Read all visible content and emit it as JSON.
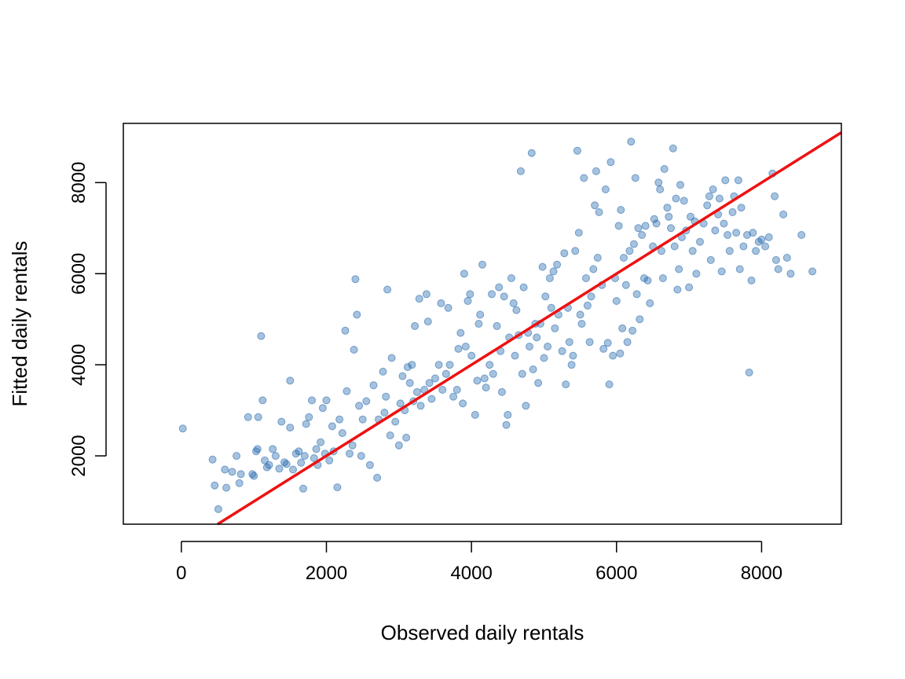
{
  "chart_data": {
    "type": "scatter",
    "xlabel": "Observed daily rentals",
    "ylabel": "Fitted daily rentals",
    "xlim": [
      -800,
      9100
    ],
    "ylim": [
      500,
      9300
    ],
    "x_ticks": [
      0,
      2000,
      4000,
      6000,
      8000
    ],
    "y_ticks": [
      2000,
      4000,
      6000,
      8000
    ],
    "x_tick_labels": [
      "0",
      "2000",
      "4000",
      "6000",
      "8000"
    ],
    "y_tick_labels": [
      "2000",
      "4000",
      "6000",
      "8000"
    ],
    "grid": false,
    "point_color": "#2166ac",
    "line_color": "#ee1111",
    "reference_line": {
      "label": "y = x",
      "intercept": 0,
      "slope": 1
    },
    "series": [
      {
        "points": [
          [
            20,
            2600
          ],
          [
            430,
            1920
          ],
          [
            460,
            1350
          ],
          [
            510,
            830
          ],
          [
            600,
            1700
          ],
          [
            620,
            1300
          ],
          [
            700,
            1650
          ],
          [
            760,
            2000
          ],
          [
            800,
            1400
          ],
          [
            820,
            1600
          ],
          [
            920,
            2850
          ],
          [
            980,
            1600
          ],
          [
            1000,
            1560
          ],
          [
            1030,
            2100
          ],
          [
            1050,
            2150
          ],
          [
            1060,
            2850
          ],
          [
            1100,
            4630
          ],
          [
            1120,
            3220
          ],
          [
            1150,
            1900
          ],
          [
            1180,
            1750
          ],
          [
            1210,
            1800
          ],
          [
            1260,
            2150
          ],
          [
            1300,
            2000
          ],
          [
            1350,
            1720
          ],
          [
            1380,
            2750
          ],
          [
            1420,
            1860
          ],
          [
            1450,
            1820
          ],
          [
            1500,
            3650
          ],
          [
            1500,
            2620
          ],
          [
            1540,
            1700
          ],
          [
            1580,
            2050
          ],
          [
            1620,
            2100
          ],
          [
            1650,
            1850
          ],
          [
            1680,
            1280
          ],
          [
            1700,
            2000
          ],
          [
            1720,
            2700
          ],
          [
            1760,
            2850
          ],
          [
            1800,
            3220
          ],
          [
            1830,
            1950
          ],
          [
            1860,
            2150
          ],
          [
            1880,
            1800
          ],
          [
            1920,
            2300
          ],
          [
            1950,
            3050
          ],
          [
            1980,
            2050
          ],
          [
            2000,
            3220
          ],
          [
            2040,
            1900
          ],
          [
            2080,
            2650
          ],
          [
            2100,
            2100
          ],
          [
            2150,
            1310
          ],
          [
            2180,
            2800
          ],
          [
            2220,
            2500
          ],
          [
            2260,
            4750
          ],
          [
            2280,
            3420
          ],
          [
            2320,
            2050
          ],
          [
            2360,
            2230
          ],
          [
            2380,
            4330
          ],
          [
            2400,
            5880
          ],
          [
            2420,
            5100
          ],
          [
            2450,
            3100
          ],
          [
            2480,
            2000
          ],
          [
            2500,
            2800
          ],
          [
            2550,
            3200
          ],
          [
            2600,
            1800
          ],
          [
            2650,
            3550
          ],
          [
            2700,
            1520
          ],
          [
            2720,
            2800
          ],
          [
            2780,
            3850
          ],
          [
            2800,
            2950
          ],
          [
            2820,
            3300
          ],
          [
            2840,
            5650
          ],
          [
            2880,
            2450
          ],
          [
            2900,
            4150
          ],
          [
            2950,
            2750
          ],
          [
            3000,
            2230
          ],
          [
            3020,
            3150
          ],
          [
            3050,
            3750
          ],
          [
            3080,
            3000
          ],
          [
            3100,
            2400
          ],
          [
            3120,
            3950
          ],
          [
            3150,
            3600
          ],
          [
            3180,
            4000
          ],
          [
            3200,
            3200
          ],
          [
            3220,
            4850
          ],
          [
            3250,
            3400
          ],
          [
            3280,
            5450
          ],
          [
            3300,
            3100
          ],
          [
            3350,
            3450
          ],
          [
            3380,
            5550
          ],
          [
            3400,
            4950
          ],
          [
            3420,
            3600
          ],
          [
            3450,
            3250
          ],
          [
            3500,
            3700
          ],
          [
            3550,
            4000
          ],
          [
            3580,
            5350
          ],
          [
            3600,
            3450
          ],
          [
            3650,
            3800
          ],
          [
            3680,
            5250
          ],
          [
            3700,
            4000
          ],
          [
            3750,
            3300
          ],
          [
            3800,
            3450
          ],
          [
            3820,
            4350
          ],
          [
            3850,
            4700
          ],
          [
            3880,
            3150
          ],
          [
            3900,
            6000
          ],
          [
            3920,
            4400
          ],
          [
            3950,
            5400
          ],
          [
            3980,
            5550
          ],
          [
            4000,
            4200
          ],
          [
            4050,
            2900
          ],
          [
            4080,
            3650
          ],
          [
            4100,
            4900
          ],
          [
            4120,
            5100
          ],
          [
            4150,
            6200
          ],
          [
            4180,
            3700
          ],
          [
            4200,
            3500
          ],
          [
            4250,
            4000
          ],
          [
            4280,
            5550
          ],
          [
            4300,
            3800
          ],
          [
            4350,
            4850
          ],
          [
            4380,
            5700
          ],
          [
            4400,
            4300
          ],
          [
            4420,
            3400
          ],
          [
            4450,
            5500
          ],
          [
            4480,
            2680
          ],
          [
            4500,
            2900
          ],
          [
            4520,
            4600
          ],
          [
            4550,
            5900
          ],
          [
            4580,
            5350
          ],
          [
            4600,
            4200
          ],
          [
            4620,
            5200
          ],
          [
            4650,
            4650
          ],
          [
            4680,
            8250
          ],
          [
            4700,
            3800
          ],
          [
            4720,
            5700
          ],
          [
            4750,
            3100
          ],
          [
            4780,
            4700
          ],
          [
            4800,
            4400
          ],
          [
            4830,
            8650
          ],
          [
            4850,
            3900
          ],
          [
            4880,
            4900
          ],
          [
            4900,
            4600
          ],
          [
            4920,
            3600
          ],
          [
            4950,
            4900
          ],
          [
            4980,
            6150
          ],
          [
            5000,
            4150
          ],
          [
            5020,
            5500
          ],
          [
            5050,
            4400
          ],
          [
            5080,
            5900
          ],
          [
            5100,
            5250
          ],
          [
            5130,
            6050
          ],
          [
            5150,
            4800
          ],
          [
            5180,
            6200
          ],
          [
            5200,
            5100
          ],
          [
            5250,
            4300
          ],
          [
            5280,
            6450
          ],
          [
            5300,
            3570
          ],
          [
            5330,
            5250
          ],
          [
            5350,
            4500
          ],
          [
            5380,
            4000
          ],
          [
            5400,
            4200
          ],
          [
            5430,
            6500
          ],
          [
            5460,
            8700
          ],
          [
            5480,
            6900
          ],
          [
            5500,
            5100
          ],
          [
            5520,
            4900
          ],
          [
            5550,
            8100
          ],
          [
            5580,
            5900
          ],
          [
            5600,
            5300
          ],
          [
            5630,
            4500
          ],
          [
            5650,
            5500
          ],
          [
            5680,
            6100
          ],
          [
            5700,
            7500
          ],
          [
            5720,
            8250
          ],
          [
            5740,
            6350
          ],
          [
            5760,
            7350
          ],
          [
            5800,
            5750
          ],
          [
            5820,
            4350
          ],
          [
            5850,
            7850
          ],
          [
            5880,
            4480
          ],
          [
            5900,
            3570
          ],
          [
            5920,
            8450
          ],
          [
            5950,
            4200
          ],
          [
            5980,
            5900
          ],
          [
            6000,
            5400
          ],
          [
            6030,
            7050
          ],
          [
            6050,
            4250
          ],
          [
            6060,
            7400
          ],
          [
            6080,
            4800
          ],
          [
            6100,
            6350
          ],
          [
            6130,
            5750
          ],
          [
            6150,
            4500
          ],
          [
            6180,
            6500
          ],
          [
            6200,
            8900
          ],
          [
            6220,
            4750
          ],
          [
            6240,
            6650
          ],
          [
            6260,
            8100
          ],
          [
            6280,
            5550
          ],
          [
            6300,
            7000
          ],
          [
            6320,
            5000
          ],
          [
            6350,
            6850
          ],
          [
            6380,
            5900
          ],
          [
            6400,
            7050
          ],
          [
            6430,
            5850
          ],
          [
            6460,
            5350
          ],
          [
            6500,
            6600
          ],
          [
            6520,
            7200
          ],
          [
            6550,
            7100
          ],
          [
            6580,
            8000
          ],
          [
            6600,
            7850
          ],
          [
            6620,
            6500
          ],
          [
            6640,
            5900
          ],
          [
            6660,
            8300
          ],
          [
            6700,
            7450
          ],
          [
            6720,
            7250
          ],
          [
            6750,
            7000
          ],
          [
            6780,
            8750
          ],
          [
            6800,
            6600
          ],
          [
            6820,
            7650
          ],
          [
            6840,
            5650
          ],
          [
            6860,
            6100
          ],
          [
            6880,
            7950
          ],
          [
            6900,
            6800
          ],
          [
            6930,
            7600
          ],
          [
            6960,
            6950
          ],
          [
            7000,
            5700
          ],
          [
            7020,
            7250
          ],
          [
            7050,
            6500
          ],
          [
            7080,
            7150
          ],
          [
            7100,
            6000
          ],
          [
            7150,
            6700
          ],
          [
            7200,
            7100
          ],
          [
            7250,
            7500
          ],
          [
            7280,
            7700
          ],
          [
            7300,
            6300
          ],
          [
            7330,
            7850
          ],
          [
            7360,
            6950
          ],
          [
            7400,
            7300
          ],
          [
            7420,
            7650
          ],
          [
            7450,
            6050
          ],
          [
            7480,
            7100
          ],
          [
            7500,
            8050
          ],
          [
            7530,
            6850
          ],
          [
            7560,
            6500
          ],
          [
            7600,
            7350
          ],
          [
            7620,
            7700
          ],
          [
            7650,
            6900
          ],
          [
            7680,
            8050
          ],
          [
            7700,
            6100
          ],
          [
            7720,
            7450
          ],
          [
            7750,
            6600
          ],
          [
            7800,
            6850
          ],
          [
            7830,
            3830
          ],
          [
            7860,
            5850
          ],
          [
            7880,
            6900
          ],
          [
            7920,
            6500
          ],
          [
            7960,
            6700
          ],
          [
            8000,
            6750
          ],
          [
            8050,
            6600
          ],
          [
            8100,
            6800
          ],
          [
            8150,
            8200
          ],
          [
            8180,
            7700
          ],
          [
            8200,
            6300
          ],
          [
            8230,
            6100
          ],
          [
            8300,
            7300
          ],
          [
            8350,
            6350
          ],
          [
            8400,
            6000
          ],
          [
            8550,
            6850
          ],
          [
            8700,
            6050
          ]
        ]
      }
    ]
  }
}
